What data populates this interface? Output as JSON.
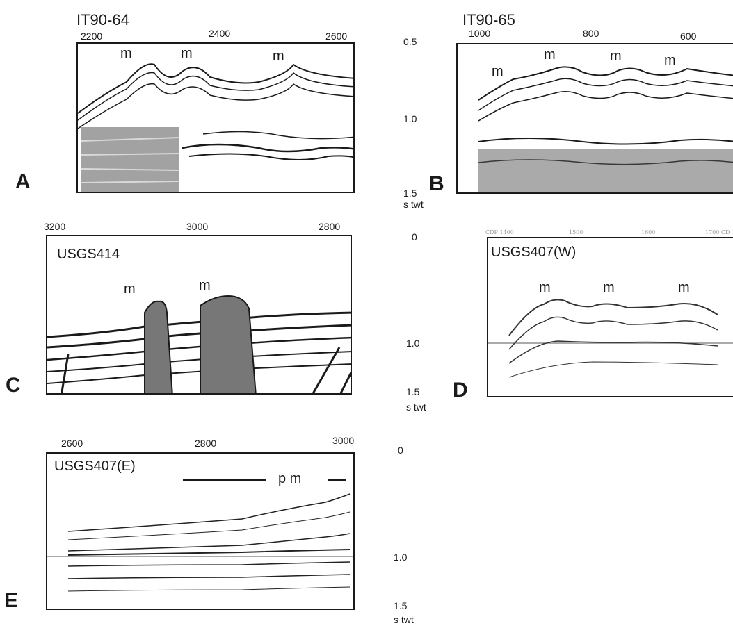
{
  "panels": {
    "A": {
      "letter": "A",
      "title": "IT90-64",
      "ticks": [
        "2200",
        "2400",
        "2600"
      ],
      "features": [
        "m",
        "m",
        "m"
      ]
    },
    "B": {
      "letter": "B",
      "title": "IT90-65",
      "ticks": [
        "1000",
        "800",
        "600"
      ],
      "features": [
        "m",
        "m",
        "m",
        "m"
      ]
    },
    "C": {
      "letter": "C",
      "title": "USGS414",
      "ticks": [
        "3200",
        "3000",
        "2800"
      ],
      "features": [
        "m",
        "m"
      ]
    },
    "D": {
      "letter": "D",
      "title": "USGS407(W)",
      "ticks": [
        "CDP 1400",
        "1500",
        "1600",
        "1700 CD"
      ],
      "features": [
        "m",
        "m",
        "m"
      ]
    },
    "E": {
      "letter": "E",
      "title": "USGS407(E)",
      "ticks": [
        "2600",
        "2800",
        "3000"
      ],
      "features": [
        "p m"
      ]
    }
  },
  "axes": {
    "row1": [
      "0.5",
      "1.0",
      "1.5"
    ],
    "row2": [
      "0",
      "1.0",
      "1.5"
    ],
    "row3": [
      "0",
      "1.0",
      "1.5"
    ],
    "unit": "s twt"
  }
}
